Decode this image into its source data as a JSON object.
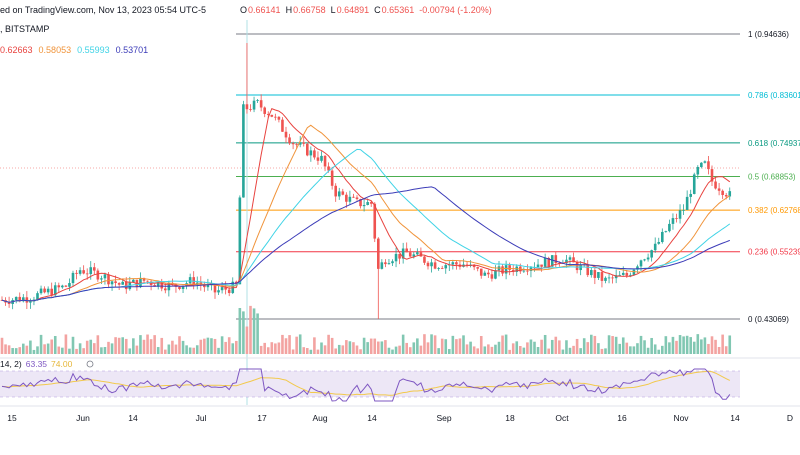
{
  "header": {
    "line1": "ed on TradingView.com, Nov 13, 2023 05:54 UTC-5",
    "ohlc": [
      {
        "label": "O",
        "value": "0.66141"
      },
      {
        "label": "H",
        "value": "0.66758"
      },
      {
        "label": "L",
        "value": "0.64891"
      },
      {
        "label": "C",
        "value": "0.65361"
      },
      {
        "label": "",
        "value": "-0.00794 (-1.20%)"
      }
    ],
    "exchange": ", BITSTAMP",
    "ma_values": [
      {
        "value": "0.62663",
        "color": "#e8433f"
      },
      {
        "value": "0.58053",
        "color": "#f0943b"
      },
      {
        "value": "0.55993",
        "color": "#3fd3e6"
      },
      {
        "value": "0.53701",
        "color": "#3c3cb8"
      }
    ]
  },
  "colors": {
    "up": "#26a69a",
    "down": "#ef5350",
    "text": "#2a2e39",
    "axis_text": "#131722",
    "rsi": "#7e57c2",
    "rsi_ma": "#f2c94c",
    "rsi_band": "#ede7f6"
  },
  "chart_data": {
    "type": "candlestick",
    "x_axis": {
      "ticks": [
        "15",
        "Jun",
        "14",
        "Jul",
        "17",
        "Aug",
        "14",
        "Sep",
        "18",
        "Oct",
        "16",
        "Nov",
        "14",
        "D"
      ]
    },
    "fib_levels": [
      {
        "ratio": "1",
        "price": 0.94636,
        "label": "1 (0.94636)",
        "color": "#787b86"
      },
      {
        "ratio": "0.786",
        "price": 0.83601,
        "label": "0.786 (0.83601)",
        "color": "#00bcd4"
      },
      {
        "ratio": "0.618",
        "price": 0.74937,
        "label": "0.618 (0.74937)",
        "color": "#089981"
      },
      {
        "ratio": "0.5",
        "price": 0.68853,
        "label": "0.5 (0.68853)",
        "color": "#4caf50"
      },
      {
        "ratio": "0.382",
        "price": 0.62768,
        "label": "0.382 (0.62768)",
        "color": "#ff9800"
      },
      {
        "ratio": "0.236",
        "price": 0.55239,
        "label": "0.236 (0.55239)",
        "color": "#f23645"
      },
      {
        "ratio": "0",
        "price": 0.43069,
        "label": "0 (0.43069)",
        "color": "#787b86"
      }
    ],
    "rsi": {
      "label_prefix": "14, 2)",
      "value": "63.35",
      "ma_value": "74.00"
    }
  }
}
